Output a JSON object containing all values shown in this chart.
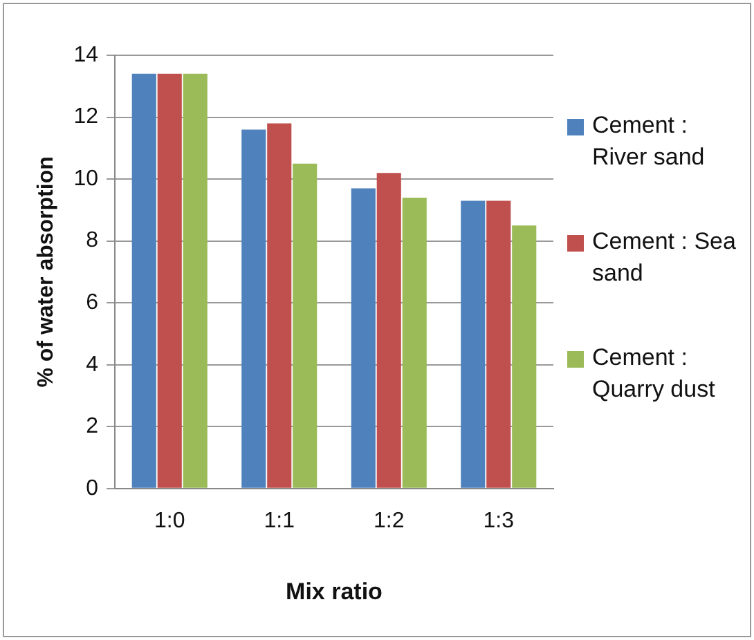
{
  "chart_data": {
    "type": "bar",
    "xlabel": "Mix ratio",
    "ylabel": "% of water absorption",
    "categories": [
      "1:0",
      "1:1",
      "1:2",
      "1:3"
    ],
    "series": [
      {
        "name": "Cement : River sand",
        "color": "#4f81bd",
        "values": [
          13.4,
          11.6,
          9.7,
          9.3
        ]
      },
      {
        "name": "Cement : Sea sand",
        "color": "#c0504d",
        "values": [
          13.4,
          11.8,
          10.2,
          9.3
        ]
      },
      {
        "name": "Cement : Quarry dust",
        "color": "#9bbb59",
        "values": [
          13.4,
          10.5,
          9.4,
          8.5
        ]
      }
    ],
    "ylim": [
      0,
      14
    ],
    "yticks": [
      0,
      2,
      4,
      6,
      8,
      10,
      12,
      14
    ],
    "grid": "y",
    "legend": "right"
  }
}
